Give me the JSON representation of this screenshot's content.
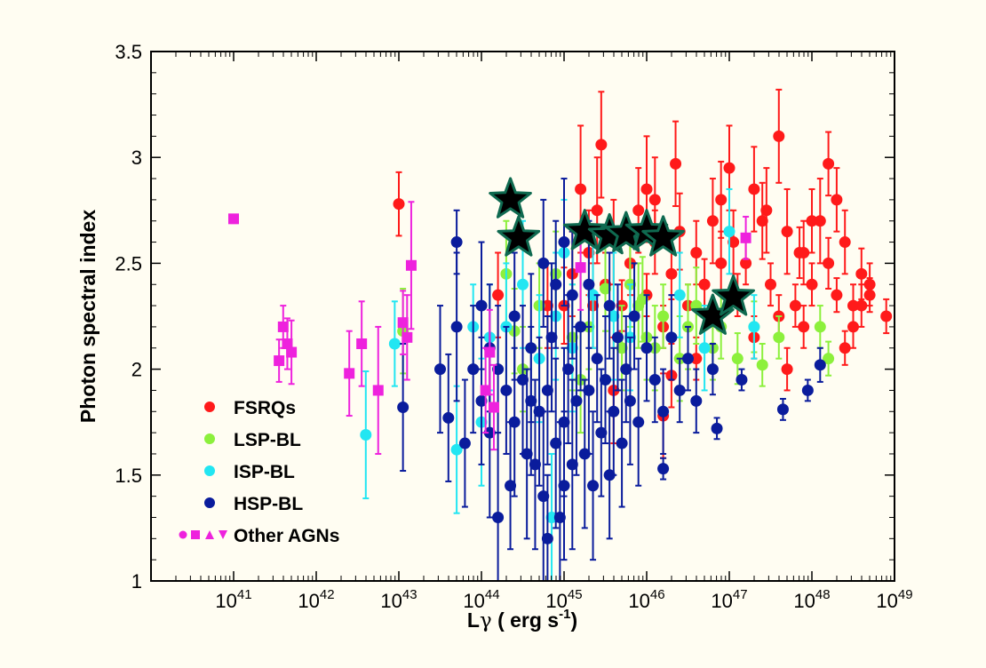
{
  "chart_data": {
    "type": "scatter",
    "title": "",
    "xlabel": {
      "base": "L",
      "greek": "γ",
      "unit_pre": " ( erg s",
      "unit_exp": "-1",
      "unit_post": ")"
    },
    "ylabel": "Photon spectral index",
    "xscale": "log",
    "xlim_log10": [
      40,
      49
    ],
    "ylim": [
      1,
      3.5
    ],
    "x_ticks": [
      {
        "base": "10",
        "exp": "41",
        "log10": 41
      },
      {
        "base": "10",
        "exp": "42",
        "log10": 42
      },
      {
        "base": "10",
        "exp": "43",
        "log10": 43
      },
      {
        "base": "10",
        "exp": "44",
        "log10": 44
      },
      {
        "base": "10",
        "exp": "45",
        "log10": 45
      },
      {
        "base": "10",
        "exp": "46",
        "log10": 46
      },
      {
        "base": "10",
        "exp": "47",
        "log10": 47
      },
      {
        "base": "10",
        "exp": "48",
        "log10": 48
      },
      {
        "base": "10",
        "exp": "49",
        "log10": 49
      }
    ],
    "y_ticks": [
      {
        "label": "1",
        "value": 1
      },
      {
        "label": "1.5",
        "value": 1.5
      },
      {
        "label": "2",
        "value": 2
      },
      {
        "label": "2.5",
        "value": 2.5
      },
      {
        "label": "3",
        "value": 3
      },
      {
        "label": "3.5",
        "value": 3.5
      }
    ],
    "legend_position": "lower-left",
    "series": [
      {
        "name": "FSRQs",
        "color": "#ff1a1a",
        "marker": "circle",
        "note": "points given as [log10 Lγ, index, error]",
        "points": [
          [
            47.0,
            2.95,
            0.2
          ],
          [
            47.2,
            2.5,
            0.1
          ],
          [
            47.4,
            2.7,
            0.18
          ],
          [
            47.5,
            2.4,
            0.1
          ],
          [
            47.7,
            2.65,
            0.2
          ],
          [
            47.8,
            2.3,
            0.1
          ],
          [
            47.9,
            2.55,
            0.15
          ],
          [
            48.0,
            2.4,
            0.1
          ],
          [
            48.1,
            2.7,
            0.2
          ],
          [
            48.2,
            2.5,
            0.12
          ],
          [
            48.3,
            2.35,
            0.08
          ],
          [
            48.4,
            2.6,
            0.15
          ],
          [
            48.5,
            2.2,
            0.1
          ],
          [
            48.6,
            2.45,
            0.12
          ],
          [
            47.3,
            2.15,
            0.1
          ],
          [
            47.6,
            2.25,
            0.1
          ],
          [
            47.1,
            2.35,
            0.1
          ],
          [
            46.9,
            2.5,
            0.15
          ],
          [
            46.8,
            2.7,
            0.2
          ],
          [
            46.7,
            2.4,
            0.12
          ],
          [
            46.6,
            2.55,
            0.15
          ],
          [
            46.5,
            2.3,
            0.1
          ],
          [
            46.4,
            2.65,
            0.18
          ],
          [
            46.3,
            2.45,
            0.12
          ],
          [
            46.2,
            2.2,
            0.1
          ],
          [
            46.1,
            2.6,
            0.15
          ],
          [
            46.0,
            2.35,
            0.1
          ],
          [
            45.9,
            2.75,
            0.2
          ],
          [
            45.8,
            2.5,
            0.15
          ],
          [
            45.7,
            2.3,
            0.12
          ],
          [
            45.6,
            2.6,
            0.2
          ],
          [
            45.5,
            2.4,
            0.15
          ],
          [
            45.4,
            2.75,
            0.25
          ],
          [
            45.3,
            2.55,
            0.2
          ],
          [
            45.2,
            2.85,
            0.3
          ],
          [
            45.1,
            2.45,
            0.2
          ],
          [
            45.0,
            2.3,
            0.18
          ],
          [
            45.45,
            3.06,
            0.25
          ],
          [
            46.35,
            2.97,
            0.2
          ],
          [
            46.1,
            2.8,
            0.2
          ],
          [
            47.6,
            3.1,
            0.22
          ],
          [
            48.2,
            2.97,
            0.15
          ],
          [
            47.3,
            2.85,
            0.2
          ],
          [
            46.9,
            2.8,
            0.18
          ],
          [
            48.4,
            2.1,
            0.08
          ],
          [
            48.5,
            2.3,
            0.1
          ],
          [
            48.7,
            2.35,
            0.08
          ],
          [
            48.9,
            2.25,
            0.08
          ],
          [
            48.7,
            2.4,
            0.1
          ],
          [
            48.6,
            2.3,
            0.1
          ],
          [
            47.7,
            2.0,
            0.1
          ],
          [
            47.9,
            2.2,
            0.1
          ],
          [
            46.6,
            2.05,
            0.1
          ],
          [
            46.3,
            1.97,
            0.15
          ],
          [
            46.2,
            1.78,
            0.2
          ],
          [
            43.0,
            2.78,
            0.15
          ],
          [
            44.2,
            2.35,
            0.2
          ],
          [
            44.8,
            2.3,
            0.2
          ],
          [
            45.35,
            2.3,
            0.2
          ],
          [
            45.6,
            1.9,
            0.25
          ],
          [
            46.0,
            2.85,
            0.25
          ],
          [
            47.05,
            2.6,
            0.15
          ],
          [
            47.45,
            2.75,
            0.2
          ],
          [
            48.0,
            2.7,
            0.15
          ],
          [
            48.3,
            2.8,
            0.15
          ],
          [
            47.85,
            2.55,
            0.12
          ]
        ]
      },
      {
        "name": "LSP-BL",
        "color": "#8cf03c",
        "marker": "circle",
        "points": [
          [
            43.05,
            2.18,
            0.2
          ],
          [
            44.3,
            2.45,
            0.25
          ],
          [
            44.7,
            2.3,
            0.2
          ],
          [
            44.9,
            2.45,
            0.2
          ],
          [
            45.1,
            2.15,
            0.25
          ],
          [
            45.3,
            2.2,
            0.2
          ],
          [
            45.5,
            2.38,
            0.2
          ],
          [
            45.7,
            2.1,
            0.2
          ],
          [
            45.9,
            2.3,
            0.2
          ],
          [
            46.0,
            2.15,
            0.2
          ],
          [
            46.2,
            2.25,
            0.15
          ],
          [
            46.4,
            2.05,
            0.2
          ],
          [
            46.5,
            2.2,
            0.2
          ],
          [
            46.6,
            2.3,
            0.18
          ],
          [
            46.8,
            2.1,
            0.15
          ],
          [
            46.9,
            2.2,
            0.15
          ],
          [
            47.1,
            2.05,
            0.12
          ],
          [
            47.3,
            2.2,
            0.12
          ],
          [
            47.4,
            2.02,
            0.1
          ],
          [
            47.6,
            2.15,
            0.1
          ],
          [
            48.1,
            2.2,
            0.1
          ],
          [
            48.2,
            2.05,
            0.08
          ],
          [
            44.5,
            2.0,
            0.2
          ],
          [
            45.2,
            1.95,
            0.25
          ],
          [
            44.4,
            2.18,
            0.2
          ],
          [
            45.8,
            2.4,
            0.2
          ],
          [
            46.1,
            2.1,
            0.2
          ],
          [
            45.95,
            2.33,
            0.2
          ]
        ]
      },
      {
        "name": "ISP-BL",
        "color": "#22e6f2",
        "marker": "circle",
        "points": [
          [
            42.6,
            1.69,
            0.3
          ],
          [
            42.95,
            2.12,
            0.2
          ],
          [
            44.1,
            2.15,
            0.25
          ],
          [
            44.3,
            2.2,
            0.3
          ],
          [
            44.5,
            2.4,
            0.3
          ],
          [
            44.7,
            2.05,
            0.3
          ],
          [
            44.9,
            2.25,
            0.3
          ],
          [
            45.1,
            2.1,
            0.3
          ],
          [
            45.35,
            2.35,
            0.25
          ],
          [
            45.6,
            2.25,
            0.3
          ],
          [
            45.8,
            2.15,
            0.25
          ],
          [
            46.4,
            2.35,
            0.2
          ],
          [
            46.7,
            2.1,
            0.2
          ],
          [
            47.0,
            2.65,
            0.2
          ],
          [
            47.3,
            2.2,
            0.15
          ],
          [
            44.85,
            1.3,
            0.3
          ],
          [
            43.9,
            2.2,
            0.2
          ],
          [
            43.7,
            1.62,
            0.3
          ],
          [
            44.0,
            1.75,
            0.3
          ],
          [
            45.0,
            2.55,
            0.25
          ]
        ]
      },
      {
        "name": "HSP-BL",
        "color": "#0a1c9c",
        "marker": "circle",
        "points": [
          [
            43.05,
            1.82,
            0.3
          ],
          [
            43.7,
            2.6,
            0.15
          ],
          [
            43.7,
            2.2,
            0.35
          ],
          [
            43.8,
            1.65,
            0.3
          ],
          [
            43.9,
            2.0,
            0.3
          ],
          [
            44.0,
            1.85,
            0.3
          ],
          [
            44.1,
            1.7,
            0.4
          ],
          [
            44.2,
            2.0,
            0.3
          ],
          [
            44.3,
            1.9,
            0.3
          ],
          [
            44.35,
            1.45,
            0.3
          ],
          [
            44.4,
            1.75,
            0.35
          ],
          [
            44.5,
            1.95,
            0.35
          ],
          [
            44.55,
            1.6,
            0.4
          ],
          [
            44.6,
            2.1,
            0.35
          ],
          [
            44.65,
            1.55,
            0.4
          ],
          [
            44.7,
            1.8,
            0.35
          ],
          [
            44.75,
            1.4,
            0.4
          ],
          [
            44.8,
            1.9,
            0.35
          ],
          [
            44.85,
            2.15,
            0.35
          ],
          [
            44.9,
            1.65,
            0.4
          ],
          [
            44.95,
            1.3,
            0.45
          ],
          [
            45.0,
            1.75,
            0.35
          ],
          [
            45.05,
            2.0,
            0.35
          ],
          [
            45.1,
            1.55,
            0.4
          ],
          [
            45.15,
            1.85,
            0.35
          ],
          [
            45.2,
            2.2,
            0.3
          ],
          [
            45.25,
            1.6,
            0.35
          ],
          [
            45.3,
            1.9,
            0.3
          ],
          [
            45.35,
            1.45,
            0.35
          ],
          [
            45.4,
            2.05,
            0.3
          ],
          [
            45.45,
            1.7,
            0.3
          ],
          [
            45.5,
            1.95,
            0.3
          ],
          [
            45.55,
            2.3,
            0.25
          ],
          [
            45.6,
            1.8,
            0.3
          ],
          [
            45.65,
            2.15,
            0.25
          ],
          [
            45.7,
            1.65,
            0.3
          ],
          [
            45.75,
            2.0,
            0.25
          ],
          [
            45.8,
            1.85,
            0.3
          ],
          [
            45.85,
            2.25,
            0.25
          ],
          [
            45.9,
            1.75,
            0.3
          ],
          [
            46.0,
            2.1,
            0.25
          ],
          [
            46.1,
            1.95,
            0.2
          ],
          [
            46.2,
            1.8,
            0.2
          ],
          [
            46.3,
            2.15,
            0.2
          ],
          [
            46.4,
            1.9,
            0.15
          ],
          [
            46.5,
            2.05,
            0.15
          ],
          [
            46.6,
            1.85,
            0.15
          ],
          [
            46.8,
            2.0,
            0.12
          ],
          [
            46.2,
            1.53,
            0.05
          ],
          [
            46.85,
            1.72,
            0.05
          ],
          [
            47.15,
            1.95,
            0.05
          ],
          [
            47.65,
            1.81,
            0.05
          ],
          [
            47.95,
            1.9,
            0.05
          ],
          [
            48.1,
            2.02,
            0.08
          ],
          [
            44.0,
            2.3,
            0.3
          ],
          [
            44.4,
            2.25,
            0.3
          ],
          [
            44.9,
            2.4,
            0.3
          ],
          [
            45.1,
            2.35,
            0.3
          ],
          [
            45.3,
            2.4,
            0.3
          ],
          [
            44.2,
            1.3,
            0.4
          ],
          [
            43.6,
            1.77,
            0.3
          ],
          [
            43.5,
            2.0,
            0.3
          ],
          [
            45.0,
            2.6,
            0.3
          ],
          [
            44.75,
            2.5,
            0.3
          ],
          [
            45.55,
            1.5,
            0.3
          ],
          [
            44.1,
            2.1,
            0.3
          ],
          [
            44.8,
            1.2,
            0.3
          ],
          [
            45.0,
            1.45,
            0.35
          ],
          [
            44.6,
            1.85,
            0.35
          ]
        ]
      },
      {
        "name": "Other AGNs",
        "color": "#ee22dd",
        "marker": "square",
        "points": [
          [
            41.0,
            2.71,
            0.02
          ],
          [
            41.55,
            2.04,
            0.1
          ],
          [
            41.6,
            2.2,
            0.1
          ],
          [
            41.65,
            2.12,
            0.12
          ],
          [
            41.7,
            2.08,
            0.15
          ],
          [
            42.4,
            1.98,
            0.2
          ],
          [
            42.55,
            2.12,
            0.2
          ],
          [
            42.75,
            1.9,
            0.3
          ],
          [
            43.05,
            2.22,
            0.15
          ],
          [
            43.1,
            2.15,
            0.2
          ],
          [
            43.15,
            2.49,
            0.3
          ],
          [
            44.1,
            2.08,
            0.2
          ],
          [
            44.05,
            1.9,
            0.2
          ],
          [
            44.15,
            1.82,
            0.2
          ],
          [
            45.2,
            2.48,
            0.2
          ],
          [
            47.2,
            2.62,
            0.1
          ]
        ]
      },
      {
        "name": "stars",
        "color": "#000000",
        "marker": "star",
        "points": [
          [
            44.35,
            2.8
          ],
          [
            44.45,
            2.62
          ],
          [
            45.25,
            2.65
          ],
          [
            45.55,
            2.63
          ],
          [
            45.75,
            2.64
          ],
          [
            46.0,
            2.65
          ],
          [
            46.2,
            2.62
          ],
          [
            46.8,
            2.25
          ],
          [
            47.05,
            2.34
          ]
        ]
      }
    ]
  }
}
